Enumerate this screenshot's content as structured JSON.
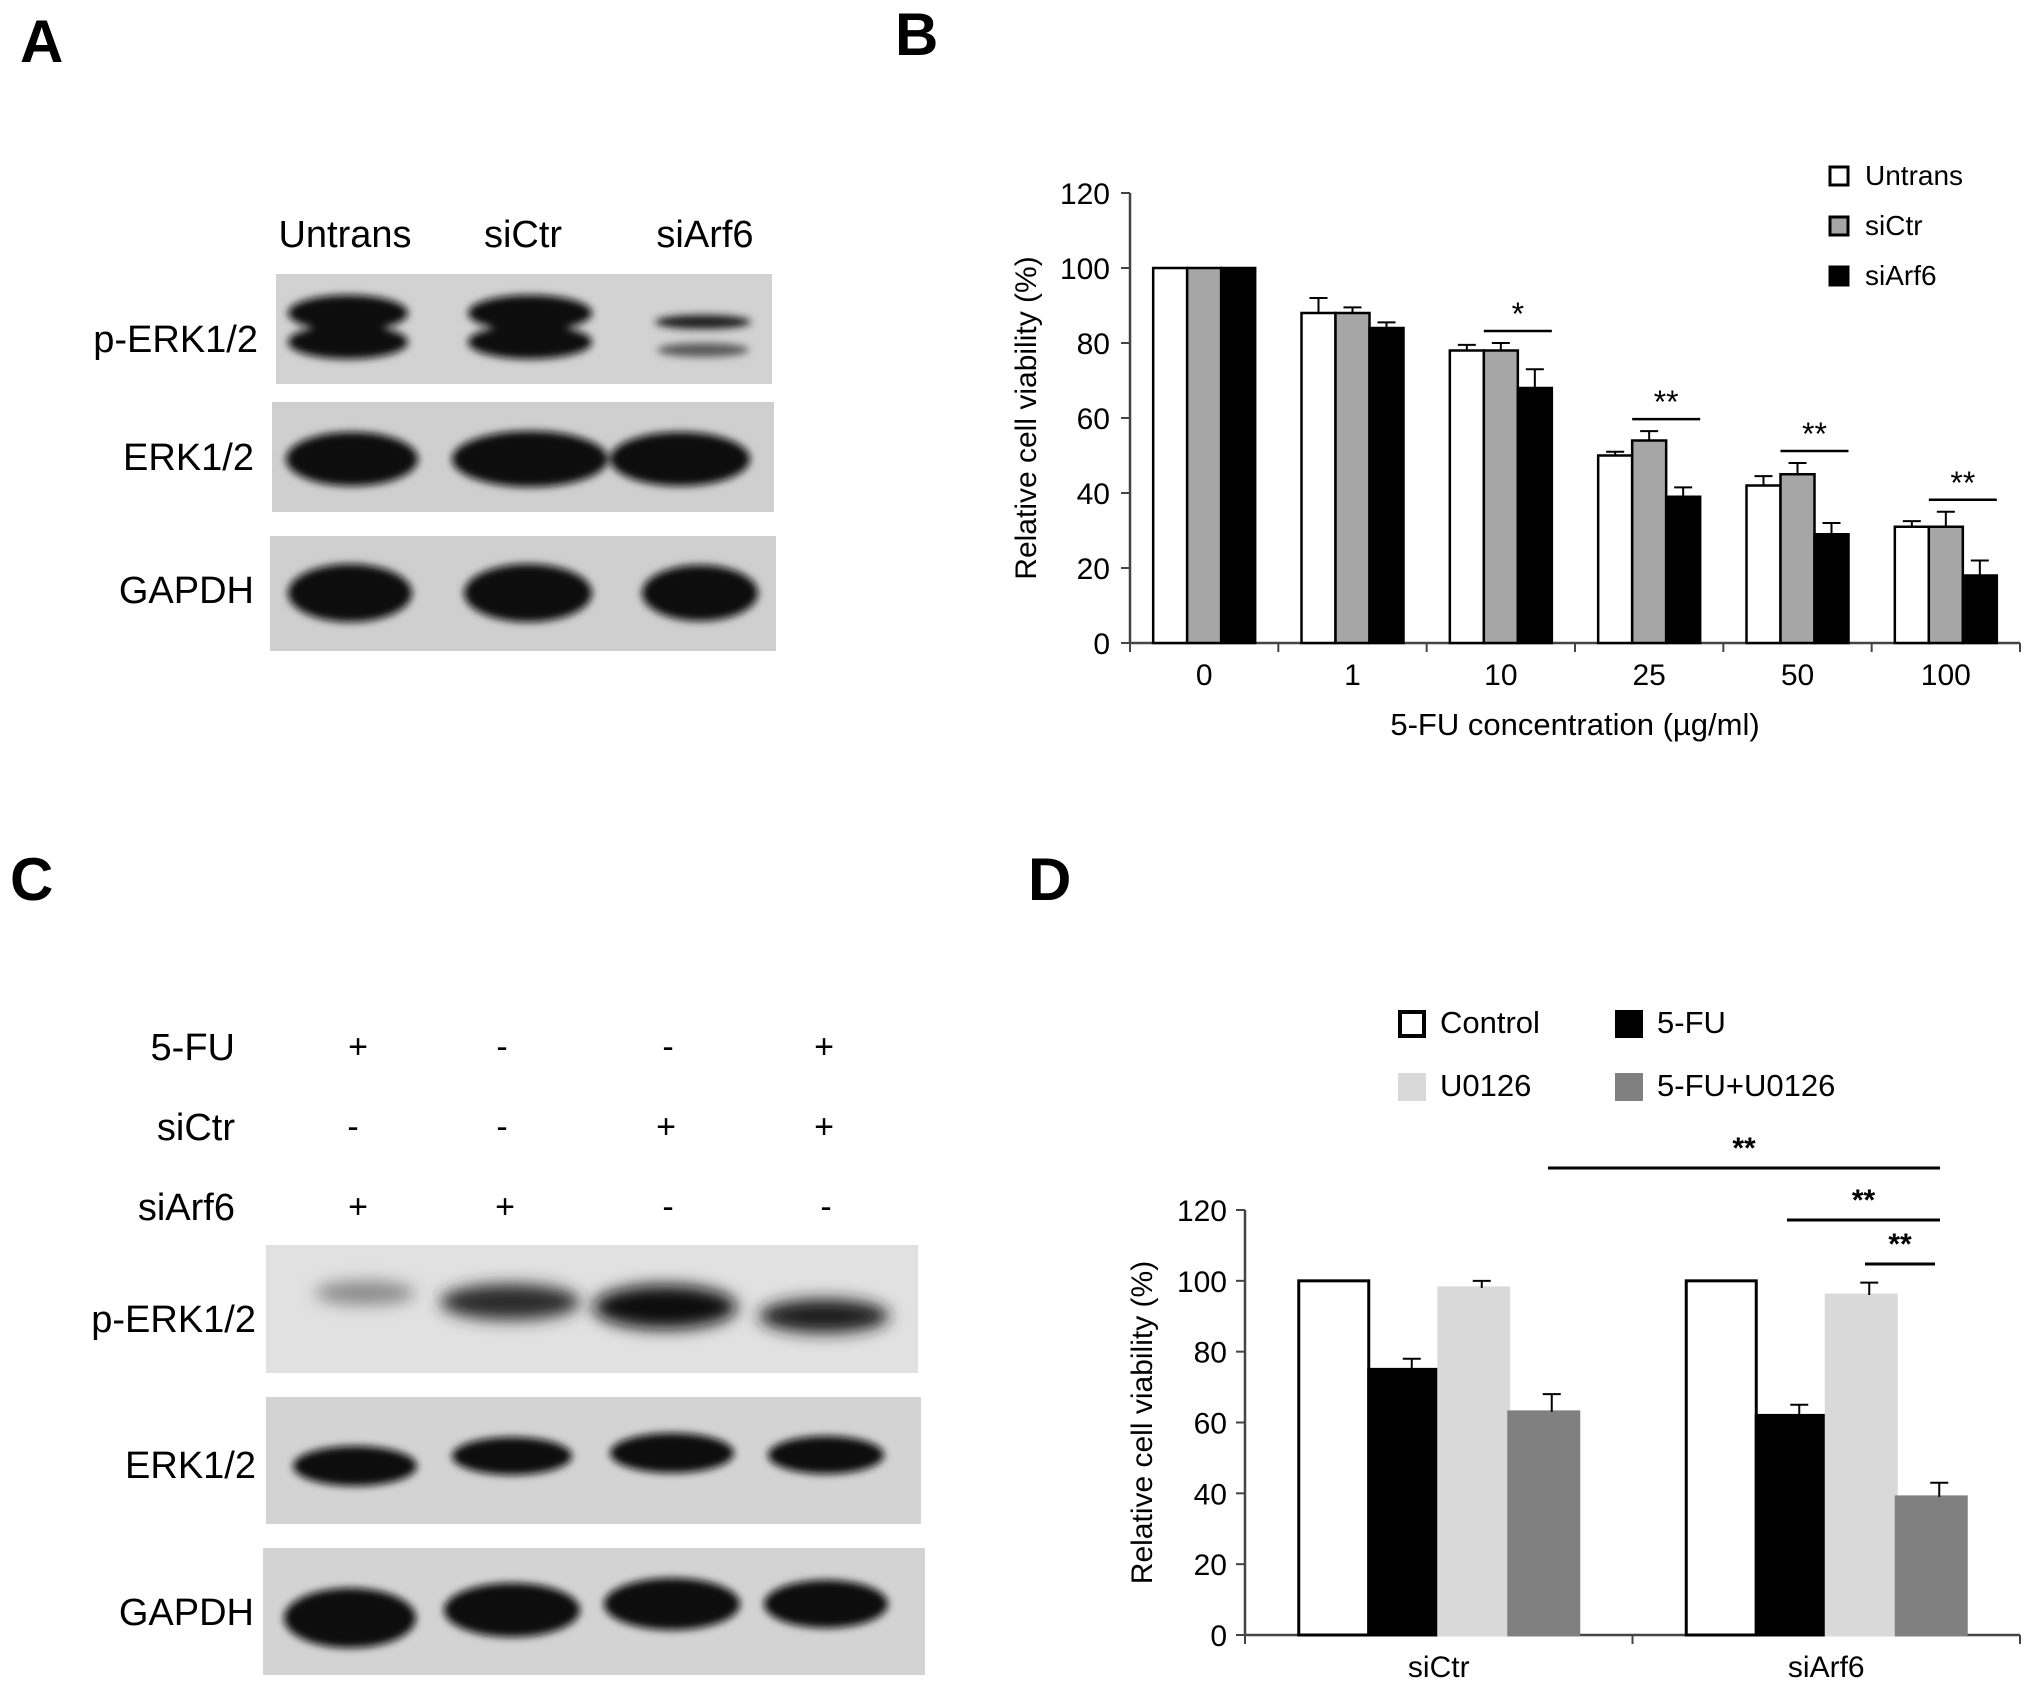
{
  "panels": {
    "A": {
      "letter": "A",
      "lanes": [
        "Untrans",
        "siCtr",
        "siArf6"
      ],
      "rows": [
        "p-ERK1/2",
        "ERK1/2",
        "GAPDH"
      ]
    },
    "B": {
      "letter": "B"
    },
    "C": {
      "letter": "C",
      "conditions": [
        {
          "label": "5-FU",
          "signs": [
            "+",
            "-",
            "-",
            "+"
          ]
        },
        {
          "label": "siCtr",
          "signs": [
            "-",
            "-",
            "+",
            "+"
          ]
        },
        {
          "label": "siArf6",
          "signs": [
            "+",
            "+",
            "-",
            "-"
          ]
        }
      ],
      "rows": [
        "p-ERK1/2",
        "ERK1/2",
        "GAPDH"
      ]
    },
    "D": {
      "letter": "D"
    }
  },
  "chart_data": [
    {
      "panel": "B",
      "type": "bar",
      "categories": [
        "0",
        "1",
        "10",
        "25",
        "50",
        "100"
      ],
      "series": [
        {
          "name": "Untrans",
          "color": "#ffffff",
          "values": [
            100,
            88,
            78,
            50,
            42,
            31
          ],
          "errors": [
            0,
            4,
            1.5,
            1,
            2.5,
            1.5
          ]
        },
        {
          "name": "siCtr",
          "color": "#a6a6a6",
          "values": [
            100,
            88,
            78,
            54,
            45,
            31
          ],
          "errors": [
            0,
            1.5,
            2,
            2.5,
            3,
            4
          ]
        },
        {
          "name": "siArf6",
          "color": "#000000",
          "values": [
            100,
            84,
            68,
            39,
            29,
            18
          ],
          "errors": [
            0,
            1.5,
            5,
            2.5,
            3,
            4
          ]
        }
      ],
      "xlabel": "5-FU concentration (µg/ml)",
      "ylabel": "Relative cell viability (%)",
      "ylim": [
        0,
        120
      ],
      "yticks": [
        0,
        20,
        40,
        60,
        80,
        100,
        120
      ],
      "legend_position": "top-right",
      "annotations": [
        {
          "category": "10",
          "text": "*"
        },
        {
          "category": "25",
          "text": "**"
        },
        {
          "category": "50",
          "text": "**"
        },
        {
          "category": "100",
          "text": "**"
        }
      ]
    },
    {
      "panel": "D",
      "type": "bar",
      "categories": [
        "siCtr",
        "siArf6"
      ],
      "series": [
        {
          "name": "Control",
          "color": "#ffffff",
          "values": [
            100,
            100
          ],
          "errors": [
            0,
            0
          ]
        },
        {
          "name": "5-FU",
          "color": "#000000",
          "values": [
            75,
            62
          ],
          "errors": [
            3,
            3
          ]
        },
        {
          "name": "U0126",
          "color": "#d9d9d9",
          "values": [
            98,
            96
          ],
          "errors": [
            2,
            3.5
          ]
        },
        {
          "name": "5-FU+U0126",
          "color": "#808080",
          "values": [
            63,
            39
          ],
          "errors": [
            5,
            4
          ]
        }
      ],
      "ylabel": "Relative cell viability (%)",
      "ylim": [
        0,
        120
      ],
      "yticks": [
        0,
        20,
        40,
        60,
        80,
        100,
        120
      ],
      "legend_position": "top",
      "annotations": [
        {
          "text": "**",
          "from": "siCtr:5-FU+U0126",
          "to": "siArf6:5-FU+U0126"
        },
        {
          "text": "**",
          "from": "siArf6:5-FU",
          "to": "siArf6:5-FU+U0126"
        },
        {
          "text": "**",
          "from": "siArf6:U0126",
          "to": "siArf6:5-FU+U0126"
        }
      ]
    }
  ]
}
